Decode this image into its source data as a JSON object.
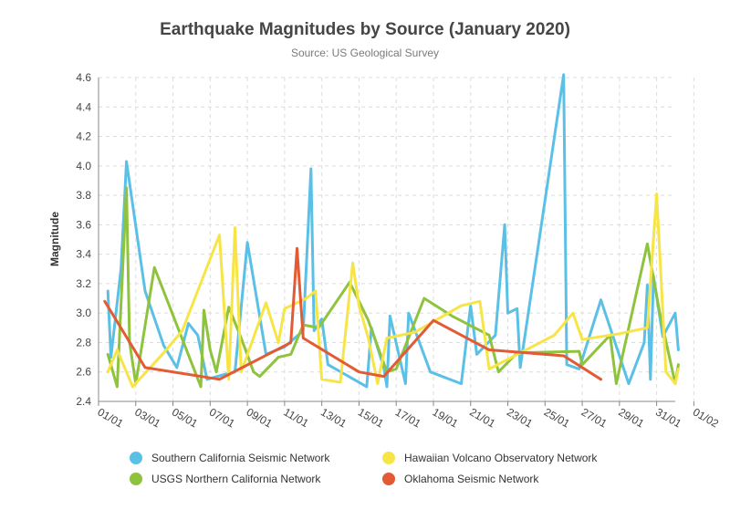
{
  "chart_data": {
    "type": "line",
    "title": "Earthquake Magnitudes by Source (January 2020)",
    "subtitle": "Source: US Geological Survey",
    "xlabel": "",
    "ylabel": "Magnitude",
    "xlim": [
      "2020-01-01",
      "2020-02-01"
    ],
    "ylim": [
      2.4,
      4.6
    ],
    "x_ticks": [
      "01/01",
      "03/01",
      "05/01",
      "07/01",
      "09/01",
      "11/01",
      "13/01",
      "15/01",
      "17/01",
      "19/01",
      "21/01",
      "23/01",
      "25/01",
      "27/01",
      "29/01",
      "31/01",
      "01/02"
    ],
    "y_ticks": [
      "2.4",
      "2.6",
      "2.8",
      "3.0",
      "3.2",
      "3.4",
      "3.6",
      "3.8",
      "4.0",
      "4.2",
      "4.4",
      "4.6"
    ],
    "grid": true,
    "legend_position": "bottom",
    "series": [
      {
        "name": "Southern California Seismic Network",
        "color": "#5bc0e6",
        "points": [
          [
            "2020-01-01 12:00",
            3.15
          ],
          [
            "2020-01-01 16:00",
            2.7
          ],
          [
            "2020-01-02 05:00",
            3.3
          ],
          [
            "2020-01-02 12:00",
            4.03
          ],
          [
            "2020-01-03 12:00",
            3.15
          ],
          [
            "2020-01-04 12:00",
            2.78
          ],
          [
            "2020-01-05 05:00",
            2.63
          ],
          [
            "2020-01-05 20:00",
            2.93
          ],
          [
            "2020-01-06 08:00",
            2.85
          ],
          [
            "2020-01-06 20:00",
            2.55
          ],
          [
            "2020-01-07 16:00",
            2.58
          ],
          [
            "2020-01-08 08:00",
            2.6
          ],
          [
            "2020-01-09 00:00",
            3.48
          ],
          [
            "2020-01-10 00:00",
            2.72
          ],
          [
            "2020-01-11 00:00",
            2.77
          ],
          [
            "2020-01-12 00:00",
            2.88
          ],
          [
            "2020-01-12 10:00",
            3.98
          ],
          [
            "2020-01-12 14:00",
            2.88
          ],
          [
            "2020-01-13 00:00",
            2.96
          ],
          [
            "2020-01-13 08:00",
            2.65
          ],
          [
            "2020-01-15 10:00",
            2.5
          ],
          [
            "2020-01-15 16:00",
            2.9
          ],
          [
            "2020-01-16 08:00",
            2.63
          ],
          [
            "2020-01-16 12:00",
            2.5
          ],
          [
            "2020-01-16 16:00",
            2.98
          ],
          [
            "2020-01-17 12:00",
            2.52
          ],
          [
            "2020-01-17 16:00",
            3.0
          ],
          [
            "2020-01-18 20:00",
            2.6
          ],
          [
            "2020-01-20 12:00",
            2.52
          ],
          [
            "2020-01-21 00:00",
            3.05
          ],
          [
            "2020-01-21 08:00",
            2.72
          ],
          [
            "2020-01-22 08:00",
            2.85
          ],
          [
            "2020-01-22 20:00",
            3.6
          ],
          [
            "2020-01-23 00:00",
            3.0
          ],
          [
            "2020-01-23 12:00",
            3.03
          ],
          [
            "2020-01-23 16:00",
            2.63
          ],
          [
            "2020-01-26 00:00",
            4.62
          ],
          [
            "2020-01-26 04:00",
            2.65
          ],
          [
            "2020-01-26 20:00",
            2.62
          ],
          [
            "2020-01-28 00:00",
            3.09
          ],
          [
            "2020-01-29 12:00",
            2.52
          ],
          [
            "2020-01-30 08:00",
            2.8
          ],
          [
            "2020-01-30 12:00",
            3.19
          ],
          [
            "2020-01-30 16:00",
            2.55
          ],
          [
            "2020-01-30 20:00",
            3.25
          ],
          [
            "2020-01-31 08:00",
            2.84
          ],
          [
            "2020-02-01 00:00",
            3.0
          ],
          [
            "2020-02-01 04:00",
            2.75
          ]
        ]
      },
      {
        "name": "USGS Northern California Network",
        "color": "#8fc33d",
        "points": [
          [
            "2020-01-01 12:00",
            2.72
          ],
          [
            "2020-01-02 00:00",
            2.5
          ],
          [
            "2020-01-02 12:00",
            3.85
          ],
          [
            "2020-01-02 16:00",
            2.8
          ],
          [
            "2020-01-03 00:00",
            2.52
          ],
          [
            "2020-01-04 00:00",
            3.31
          ],
          [
            "2020-01-06 12:00",
            2.5
          ],
          [
            "2020-01-06 16:00",
            3.02
          ],
          [
            "2020-01-07 00:00",
            2.75
          ],
          [
            "2020-01-07 08:00",
            2.6
          ],
          [
            "2020-01-08 00:00",
            3.04
          ],
          [
            "2020-01-08 16:00",
            2.83
          ],
          [
            "2020-01-09 08:00",
            2.6
          ],
          [
            "2020-01-09 16:00",
            2.57
          ],
          [
            "2020-01-10 16:00",
            2.7
          ],
          [
            "2020-01-11 08:00",
            2.72
          ],
          [
            "2020-01-12 00:00",
            2.92
          ],
          [
            "2020-01-12 20:00",
            2.9
          ],
          [
            "2020-01-14 12:00",
            3.21
          ],
          [
            "2020-01-15 12:00",
            2.95
          ],
          [
            "2020-01-16 12:00",
            2.6
          ],
          [
            "2020-01-17 00:00",
            2.62
          ],
          [
            "2020-01-18 12:00",
            3.1
          ],
          [
            "2020-01-20 00:00",
            2.98
          ],
          [
            "2020-01-22 00:00",
            2.85
          ],
          [
            "2020-01-22 12:00",
            2.6
          ],
          [
            "2020-01-23 12:00",
            2.73
          ],
          [
            "2020-01-26 20:00",
            2.74
          ],
          [
            "2020-01-27 00:00",
            2.65
          ],
          [
            "2020-01-28 12:00",
            2.85
          ],
          [
            "2020-01-28 20:00",
            2.52
          ],
          [
            "2020-01-30 12:00",
            3.47
          ],
          [
            "2020-01-31 04:00",
            3.0
          ],
          [
            "2020-02-01 00:00",
            2.52
          ],
          [
            "2020-02-01 04:00",
            2.65
          ]
        ]
      },
      {
        "name": "Hawaiian Volcano Observatory Network",
        "color": "#f7e548",
        "points": [
          [
            "2020-01-01 12:00",
            2.6
          ],
          [
            "2020-01-02 00:00",
            2.75
          ],
          [
            "2020-01-02 20:00",
            2.5
          ],
          [
            "2020-01-04 12:00",
            2.73
          ],
          [
            "2020-01-05 12:00",
            2.88
          ],
          [
            "2020-01-07 12:00",
            3.53
          ],
          [
            "2020-01-08 00:00",
            2.55
          ],
          [
            "2020-01-08 08:00",
            3.58
          ],
          [
            "2020-01-08 16:00",
            2.6
          ],
          [
            "2020-01-10 00:00",
            3.07
          ],
          [
            "2020-01-10 16:00",
            2.8
          ],
          [
            "2020-01-11 00:00",
            3.03
          ],
          [
            "2020-01-12 04:00",
            3.1
          ],
          [
            "2020-01-12 16:00",
            3.15
          ],
          [
            "2020-01-13 00:00",
            2.55
          ],
          [
            "2020-01-14 00:00",
            2.53
          ],
          [
            "2020-01-14 16:00",
            3.34
          ],
          [
            "2020-01-15 00:00",
            3.05
          ],
          [
            "2020-01-15 12:00",
            2.83
          ],
          [
            "2020-01-16 00:00",
            2.52
          ],
          [
            "2020-01-16 12:00",
            2.83
          ],
          [
            "2020-01-18 00:00",
            2.87
          ],
          [
            "2020-01-20 12:00",
            3.05
          ],
          [
            "2020-01-21 12:00",
            3.08
          ],
          [
            "2020-01-22 00:00",
            2.62
          ],
          [
            "2020-01-25 12:00",
            2.85
          ],
          [
            "2020-01-26 12:00",
            3.0
          ],
          [
            "2020-01-27 00:00",
            2.82
          ],
          [
            "2020-01-29 00:00",
            2.86
          ],
          [
            "2020-01-30 12:00",
            2.9
          ],
          [
            "2020-01-31 00:00",
            3.81
          ],
          [
            "2020-01-31 12:00",
            2.6
          ],
          [
            "2020-02-01 00:00",
            2.52
          ],
          [
            "2020-02-01 04:00",
            2.62
          ]
        ]
      },
      {
        "name": "Oklahoma Seismic Network",
        "color": "#e25b35",
        "points": [
          [
            "2020-01-01 08:00",
            3.08
          ],
          [
            "2020-01-03 12:00",
            2.63
          ],
          [
            "2020-01-07 12:00",
            2.55
          ],
          [
            "2020-01-11 08:00",
            2.8
          ],
          [
            "2020-01-11 16:00",
            3.44
          ],
          [
            "2020-01-12 00:00",
            2.83
          ],
          [
            "2020-01-15 00:00",
            2.6
          ],
          [
            "2020-01-16 08:00",
            2.57
          ],
          [
            "2020-01-19 00:00",
            2.95
          ],
          [
            "2020-01-22 00:00",
            2.75
          ],
          [
            "2020-01-26 00:00",
            2.71
          ],
          [
            "2020-01-28 00:00",
            2.55
          ]
        ]
      }
    ]
  }
}
